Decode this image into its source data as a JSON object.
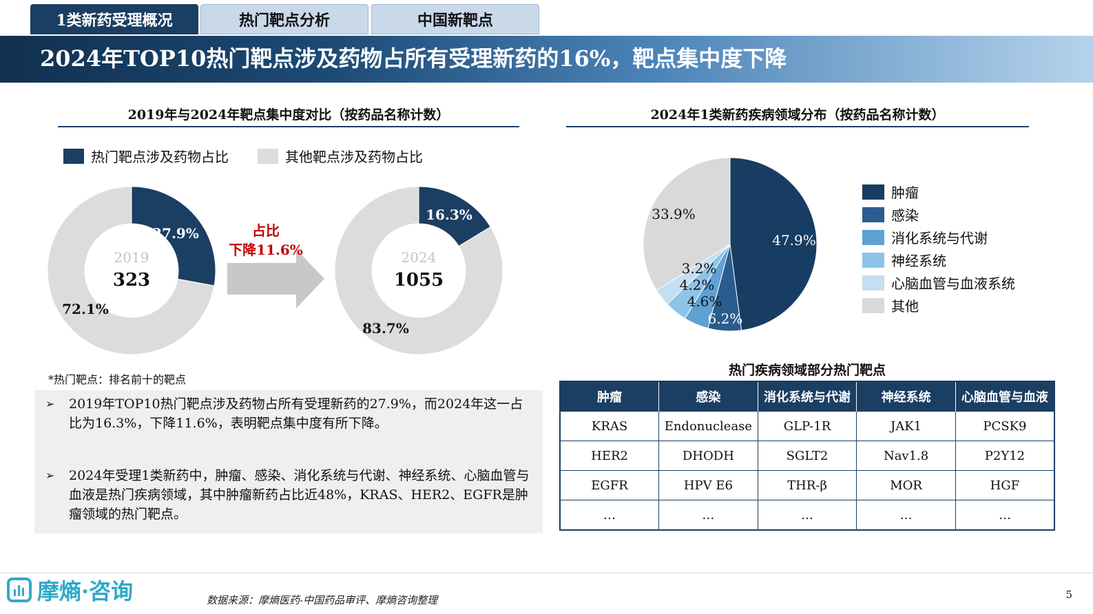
{
  "tabs": [
    {
      "label": "1类新药受理概况",
      "active": true
    },
    {
      "label": "热门靶点分析",
      "active": false
    },
    {
      "label": "中国新靶点",
      "active": false
    }
  ],
  "banner_title": "2024年TOP10热门靶点涉及药物占所有受理新药的16%，靶点集中度下降",
  "left_section_title": "2019年与2024年靶点集中度对比（按药品名称计数）",
  "right_section_title": "2024年1类新药疾病领域分布（按药品名称计数）",
  "colors": {
    "navy": "#1b3e63",
    "light_gray": "#dcdcdc",
    "decline_red": "#c00000",
    "arrow_gray": "#c8c8c8",
    "pie": [
      "#173d63",
      "#2a5d8f",
      "#5ea2d3",
      "#8ec3e8",
      "#c4def2",
      "#d9d9d9"
    ]
  },
  "donut_legend": {
    "hot": "热门靶点涉及药物占比",
    "other": "其他靶点涉及药物占比"
  },
  "arrow_label": {
    "line1": "占比",
    "line2": "下降11.6%"
  },
  "chart_data": [
    {
      "type": "pie",
      "variant": "donut",
      "center_year": "2019",
      "center_total": "323",
      "slices": [
        {
          "label": "热门靶点涉及药物占比",
          "value": 27.9,
          "text": "27.9%"
        },
        {
          "label": "其他靶点涉及药物占比",
          "value": 72.1,
          "text": "72.1%"
        }
      ]
    },
    {
      "type": "pie",
      "variant": "donut",
      "center_year": "2024",
      "center_total": "1055",
      "slices": [
        {
          "label": "热门靶点涉及药物占比",
          "value": 16.3,
          "text": "16.3%"
        },
        {
          "label": "其他靶点涉及药物占比",
          "value": 83.7,
          "text": "83.7%"
        }
      ]
    },
    {
      "type": "pie",
      "slices": [
        {
          "label": "肿瘤",
          "value": 47.9,
          "text": "47.9%"
        },
        {
          "label": "感染",
          "value": 6.2,
          "text": "6.2%"
        },
        {
          "label": "消化系统与代谢",
          "value": 4.6,
          "text": "4.6%"
        },
        {
          "label": "神经系统",
          "value": 4.2,
          "text": "4.2%"
        },
        {
          "label": "心脑血管与血液系统",
          "value": 3.2,
          "text": "3.2%"
        },
        {
          "label": "其他",
          "value": 33.9,
          "text": "33.9%"
        }
      ]
    }
  ],
  "note": "*热门靶点：排名前十的靶点",
  "bullets": [
    "2019年TOP10热门靶点涉及药物占所有受理新药的27.9%，而2024年这一占比为16.3%，下降11.6%，表明靶点集中度有所下降。",
    "2024年受理1类新药中，肿瘤、感染、消化系统与代谢、神经系统、心脑血管与血液是热门疾病领域，其中肿瘤新药占比近48%，KRAS、HER2、EGFR是肿瘤领域的热门靶点。"
  ],
  "table": {
    "title": "热门疾病领域部分热门靶点",
    "headers": [
      "肿瘤",
      "感染",
      "消化系统与代谢",
      "神经系统",
      "心脑血管与血液"
    ],
    "rows": [
      [
        "KRAS",
        "Endonuclease",
        "GLP-1R",
        "JAK1",
        "PCSK9"
      ],
      [
        "HER2",
        "DHODH",
        "SGLT2",
        "Nav1.8",
        "P2Y12"
      ],
      [
        "EGFR",
        "HPV E6",
        "THR-β",
        "MOR",
        "HGF"
      ],
      [
        "…",
        "…",
        "…",
        "…",
        "…"
      ]
    ]
  },
  "footer": {
    "logo_text": "摩熵·咨询",
    "source": "数据来源：摩熵医药-中国药品审评、摩熵咨询整理",
    "page_number": "5"
  }
}
